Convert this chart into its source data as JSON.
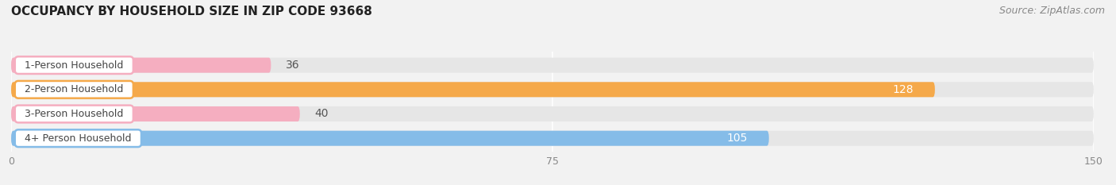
{
  "title": "OCCUPANCY BY HOUSEHOLD SIZE IN ZIP CODE 93668",
  "source": "Source: ZipAtlas.com",
  "categories": [
    "1-Person Household",
    "2-Person Household",
    "3-Person Household",
    "4+ Person Household"
  ],
  "values": [
    36,
    128,
    40,
    105
  ],
  "bar_colors": [
    "#f5aec0",
    "#f5a94a",
    "#f5aec0",
    "#85bce8"
  ],
  "label_border_colors": [
    "#f5aec0",
    "#f5a94a",
    "#f5aec0",
    "#85bce8"
  ],
  "bg_color": "#f2f2f2",
  "bar_bg_color": "#e6e6e6",
  "xlim": [
    0,
    150
  ],
  "xticks": [
    0,
    75,
    150
  ],
  "title_fontsize": 11,
  "source_fontsize": 9,
  "label_fontsize": 9,
  "value_fontsize": 9
}
